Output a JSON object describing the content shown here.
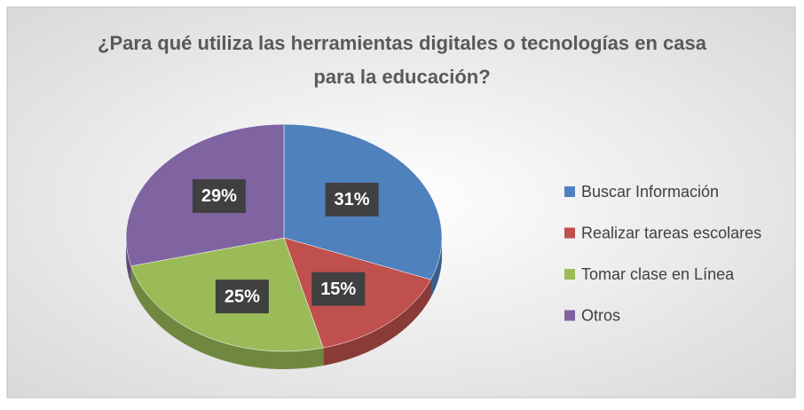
{
  "chart_data": {
    "type": "pie",
    "title": "¿Para qué utiliza las herramientas digitales o tecnologías en casa para la educación?",
    "categories": [
      "Buscar Información",
      "Realizar tareas escolares",
      "Tomar clase en Línea",
      "Otros"
    ],
    "values": [
      31,
      15,
      25,
      29
    ],
    "value_labels": [
      "31%",
      "15%",
      "25%",
      "29%"
    ],
    "colors": [
      "#4f81bd",
      "#c0504d",
      "#9bbb59",
      "#8064a2"
    ],
    "legend": "right"
  }
}
